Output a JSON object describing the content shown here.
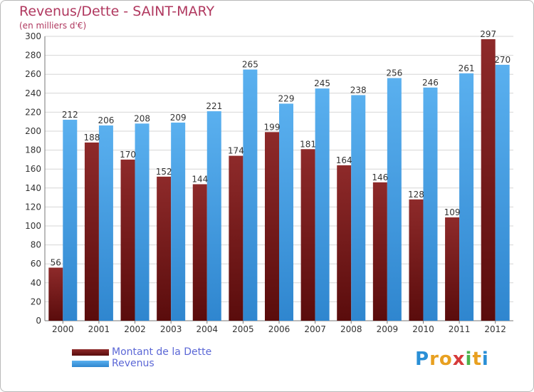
{
  "title": "Revenus/Dette - SAINT-MARY",
  "subtitle": "(en milliers d'€)",
  "logo": {
    "letters": [
      "P",
      "r",
      "o",
      "x",
      "i",
      "t",
      "i"
    ],
    "colors": [
      "#2a8fd6",
      "#e8a020",
      "#e8a020",
      "#d63a3a",
      "#4bb34b",
      "#e8a020",
      "#2a8fd6"
    ]
  },
  "chart_data": {
    "type": "bar",
    "title": "Revenus/Dette - SAINT-MARY",
    "subtitle": "(en milliers d'€)",
    "categories": [
      "2000",
      "2001",
      "2002",
      "2003",
      "2004",
      "2005",
      "2006",
      "2007",
      "2008",
      "2009",
      "2010",
      "2011",
      "2012"
    ],
    "series": [
      {
        "name": "Montant de la Dette",
        "color": "#7a1818",
        "values": [
          56,
          188,
          170,
          152,
          144,
          174,
          199,
          181,
          164,
          146,
          128,
          109,
          297
        ]
      },
      {
        "name": "Revenus",
        "color": "#3d9de3",
        "values": [
          212,
          206,
          208,
          209,
          221,
          265,
          229,
          245,
          238,
          256,
          246,
          261,
          270
        ]
      }
    ],
    "ylim": [
      0,
      300
    ],
    "yticks": [
      0,
      20,
      40,
      60,
      80,
      100,
      120,
      140,
      160,
      180,
      200,
      220,
      240,
      260,
      280,
      300
    ],
    "grid": true,
    "legend_position": "bottom-left"
  }
}
